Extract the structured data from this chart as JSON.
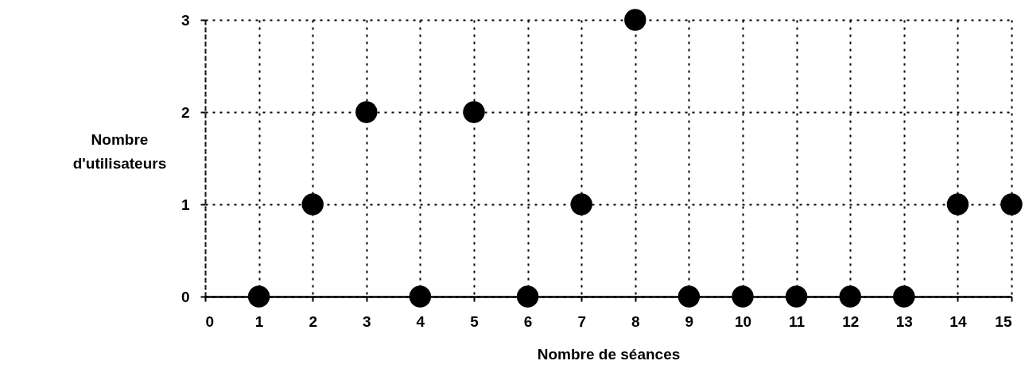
{
  "chart_data": {
    "type": "scatter",
    "xlabel": "Nombre de séances",
    "ylabel": "Nombre d'utilisateurs",
    "x": [
      1,
      2,
      3,
      4,
      5,
      6,
      7,
      8,
      9,
      10,
      11,
      12,
      13,
      14,
      15
    ],
    "series": [
      {
        "color": "#000000",
        "values": [
          0,
          1,
          2,
          0,
          2,
          0,
          1,
          3,
          0,
          0,
          0,
          0,
          0,
          1,
          1
        ]
      }
    ],
    "xlim": [
      0,
      15
    ],
    "xticks": [
      0,
      1,
      2,
      3,
      4,
      5,
      6,
      7,
      8,
      9,
      10,
      11,
      12,
      13,
      14,
      15
    ],
    "ylim": [
      0,
      3
    ],
    "yticks": [
      0,
      1,
      2,
      3
    ],
    "grid": true,
    "marker": "circle"
  }
}
